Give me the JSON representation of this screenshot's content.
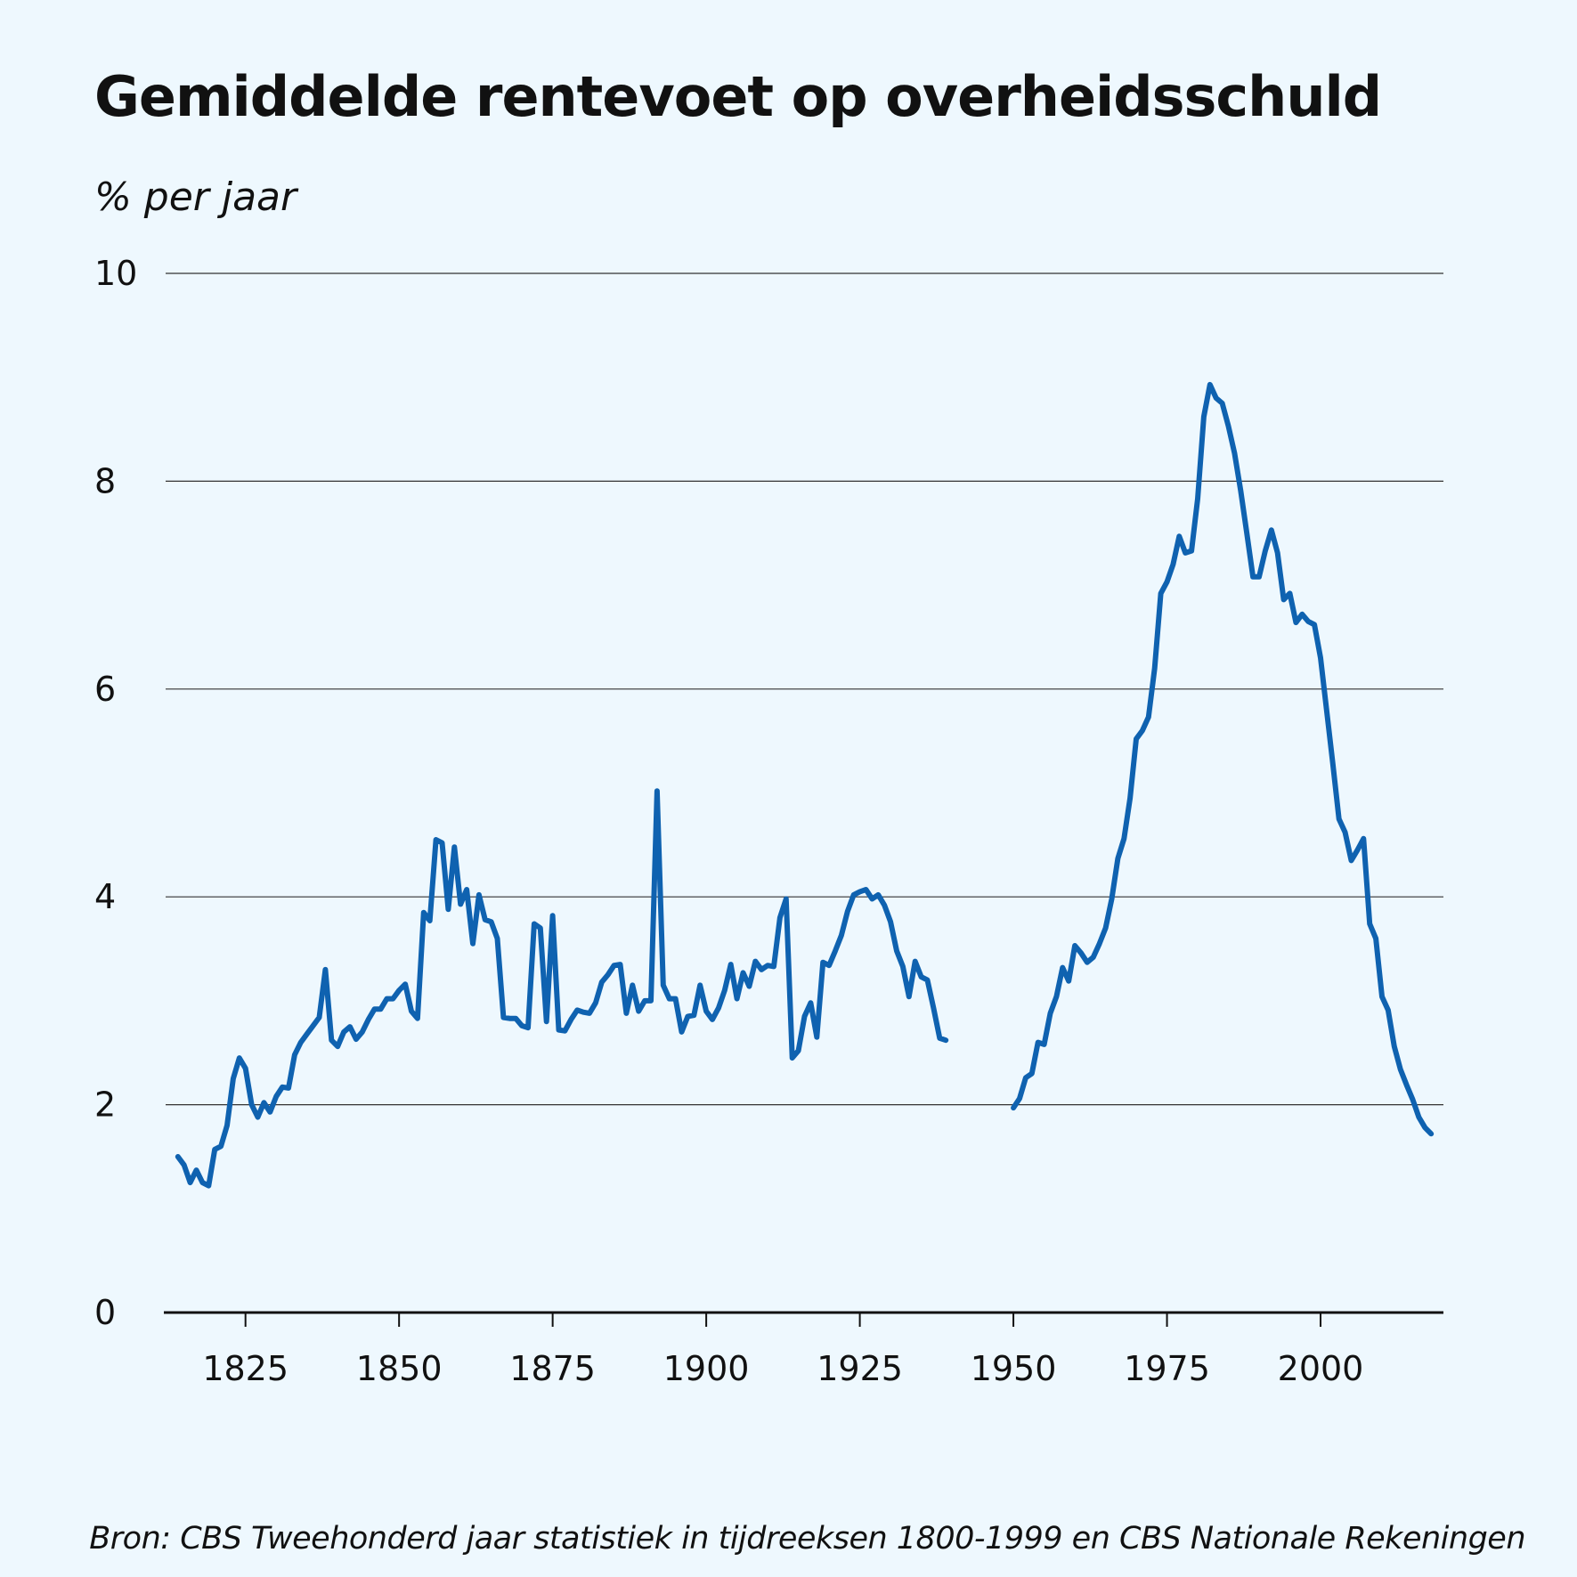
{
  "chart_data": {
    "type": "line",
    "title": "Gemiddelde rentevoet op overheidsschuld",
    "ylabel": "% per jaar",
    "xlabel": "",
    "source": "Bron: CBS Tweehonderd jaar statistiek in tijdreeksen 1800-1999 en CBS Nationale Rekeningen",
    "xlim": [
      1812,
      2020
    ],
    "ylim": [
      0,
      10
    ],
    "x_ticks": [
      1825,
      1850,
      1875,
      1900,
      1925,
      1950,
      1975,
      2000
    ],
    "y_ticks": [
      0,
      2,
      4,
      6,
      8,
      10
    ],
    "grid": true,
    "legend": "none",
    "line_color": "#0f62b0",
    "series": [
      {
        "segments": [
          [
            [
              1814,
              1.5
            ],
            [
              1815,
              1.42
            ],
            [
              1816,
              1.25
            ],
            [
              1817,
              1.37
            ],
            [
              1818,
              1.25
            ],
            [
              1819,
              1.22
            ],
            [
              1820,
              1.57
            ],
            [
              1821,
              1.6
            ],
            [
              1822,
              1.8
            ],
            [
              1823,
              2.25
            ],
            [
              1824,
              2.45
            ],
            [
              1825,
              2.35
            ],
            [
              1826,
              2.0
            ],
            [
              1827,
              1.88
            ],
            [
              1828,
              2.02
            ],
            [
              1829,
              1.93
            ],
            [
              1830,
              2.08
            ],
            [
              1831,
              2.17
            ],
            [
              1832,
              2.16
            ],
            [
              1833,
              2.48
            ],
            [
              1834,
              2.6
            ],
            [
              1835,
              2.68
            ],
            [
              1836,
              2.76
            ],
            [
              1837,
              2.84
            ],
            [
              1838,
              3.3
            ],
            [
              1839,
              2.62
            ],
            [
              1840,
              2.56
            ],
            [
              1841,
              2.7
            ],
            [
              1842,
              2.75
            ],
            [
              1843,
              2.63
            ],
            [
              1844,
              2.7
            ],
            [
              1845,
              2.82
            ],
            [
              1846,
              2.92
            ],
            [
              1847,
              2.92
            ],
            [
              1848,
              3.02
            ],
            [
              1849,
              3.02
            ],
            [
              1850,
              3.1
            ],
            [
              1851,
              3.16
            ],
            [
              1852,
              2.9
            ],
            [
              1853,
              2.83
            ],
            [
              1854,
              3.85
            ],
            [
              1855,
              3.77
            ],
            [
              1856,
              4.55
            ],
            [
              1857,
              4.52
            ],
            [
              1858,
              3.88
            ],
            [
              1859,
              4.48
            ],
            [
              1860,
              3.93
            ],
            [
              1861,
              4.07
            ],
            [
              1862,
              3.55
            ],
            [
              1863,
              4.02
            ],
            [
              1864,
              3.78
            ],
            [
              1865,
              3.76
            ],
            [
              1866,
              3.6
            ],
            [
              1867,
              2.84
            ],
            [
              1868,
              2.83
            ],
            [
              1869,
              2.83
            ],
            [
              1870,
              2.76
            ],
            [
              1871,
              2.74
            ],
            [
              1872,
              3.74
            ],
            [
              1873,
              3.7
            ],
            [
              1874,
              2.8
            ],
            [
              1875,
              3.82
            ],
            [
              1876,
              2.72
            ],
            [
              1877,
              2.71
            ],
            [
              1878,
              2.82
            ],
            [
              1879,
              2.91
            ],
            [
              1880,
              2.89
            ],
            [
              1881,
              2.88
            ],
            [
              1882,
              2.98
            ],
            [
              1883,
              3.18
            ],
            [
              1884,
              3.25
            ],
            [
              1885,
              3.34
            ],
            [
              1886,
              3.35
            ],
            [
              1887,
              2.88
            ],
            [
              1888,
              3.15
            ],
            [
              1889,
              2.9
            ],
            [
              1890,
              3.0
            ],
            [
              1891,
              3.0
            ],
            [
              1892,
              5.02
            ],
            [
              1893,
              3.15
            ],
            [
              1894,
              3.02
            ],
            [
              1895,
              3.02
            ],
            [
              1896,
              2.7
            ],
            [
              1897,
              2.85
            ],
            [
              1898,
              2.86
            ],
            [
              1899,
              3.15
            ],
            [
              1900,
              2.9
            ],
            [
              1901,
              2.82
            ],
            [
              1902,
              2.93
            ],
            [
              1903,
              3.1
            ],
            [
              1904,
              3.35
            ],
            [
              1905,
              3.02
            ],
            [
              1906,
              3.27
            ],
            [
              1907,
              3.14
            ],
            [
              1908,
              3.38
            ],
            [
              1909,
              3.3
            ],
            [
              1910,
              3.34
            ],
            [
              1911,
              3.33
            ],
            [
              1912,
              3.8
            ],
            [
              1913,
              3.98
            ],
            [
              1914,
              2.45
            ],
            [
              1915,
              2.52
            ],
            [
              1916,
              2.85
            ],
            [
              1917,
              2.98
            ],
            [
              1918,
              2.65
            ],
            [
              1919,
              3.37
            ],
            [
              1920,
              3.34
            ],
            [
              1921,
              3.48
            ],
            [
              1922,
              3.63
            ],
            [
              1923,
              3.86
            ],
            [
              1924,
              4.02
            ],
            [
              1925,
              4.05
            ],
            [
              1926,
              4.07
            ],
            [
              1927,
              3.98
            ],
            [
              1928,
              4.02
            ],
            [
              1929,
              3.92
            ],
            [
              1930,
              3.76
            ],
            [
              1931,
              3.48
            ],
            [
              1932,
              3.33
            ],
            [
              1933,
              3.04
            ],
            [
              1934,
              3.38
            ],
            [
              1935,
              3.23
            ],
            [
              1936,
              3.2
            ],
            [
              1937,
              2.93
            ],
            [
              1938,
              2.64
            ],
            [
              1939,
              2.62
            ]
          ],
          [
            [
              1950,
              1.97
            ],
            [
              1951,
              2.06
            ],
            [
              1952,
              2.26
            ],
            [
              1953,
              2.3
            ],
            [
              1954,
              2.6
            ],
            [
              1955,
              2.58
            ],
            [
              1956,
              2.88
            ],
            [
              1957,
              3.04
            ],
            [
              1958,
              3.32
            ],
            [
              1959,
              3.19
            ],
            [
              1960,
              3.53
            ],
            [
              1961,
              3.46
            ],
            [
              1962,
              3.37
            ],
            [
              1963,
              3.42
            ],
            [
              1964,
              3.55
            ],
            [
              1965,
              3.7
            ],
            [
              1966,
              3.98
            ],
            [
              1967,
              4.37
            ],
            [
              1968,
              4.56
            ],
            [
              1969,
              4.95
            ],
            [
              1970,
              5.52
            ],
            [
              1971,
              5.6
            ],
            [
              1972,
              5.73
            ],
            [
              1973,
              6.2
            ],
            [
              1974,
              6.92
            ],
            [
              1975,
              7.03
            ],
            [
              1976,
              7.2
            ],
            [
              1977,
              7.47
            ],
            [
              1978,
              7.31
            ],
            [
              1979,
              7.33
            ],
            [
              1980,
              7.83
            ],
            [
              1981,
              8.62
            ],
            [
              1982,
              8.93
            ],
            [
              1983,
              8.8
            ],
            [
              1984,
              8.75
            ],
            [
              1985,
              8.53
            ],
            [
              1986,
              8.27
            ],
            [
              1987,
              7.91
            ],
            [
              1988,
              7.5
            ],
            [
              1989,
              7.08
            ],
            [
              1990,
              7.08
            ],
            [
              1991,
              7.33
            ],
            [
              1992,
              7.53
            ],
            [
              1993,
              7.31
            ],
            [
              1994,
              6.86
            ],
            [
              1995,
              6.92
            ],
            [
              1996,
              6.64
            ],
            [
              1997,
              6.72
            ],
            [
              1998,
              6.65
            ],
            [
              1999,
              6.62
            ],
            [
              2000,
              6.3
            ],
            [
              2001,
              5.79
            ],
            [
              2002,
              5.28
            ],
            [
              2003,
              4.75
            ],
            [
              2004,
              4.62
            ],
            [
              2005,
              4.35
            ],
            [
              2006,
              4.45
            ],
            [
              2007,
              4.56
            ],
            [
              2008,
              3.74
            ],
            [
              2009,
              3.6
            ],
            [
              2010,
              3.04
            ],
            [
              2011,
              2.91
            ],
            [
              2012,
              2.56
            ],
            [
              2013,
              2.34
            ],
            [
              2014,
              2.19
            ],
            [
              2015,
              2.05
            ],
            [
              2016,
              1.88
            ],
            [
              2017,
              1.78
            ],
            [
              2018,
              1.72
            ]
          ]
        ]
      }
    ]
  }
}
